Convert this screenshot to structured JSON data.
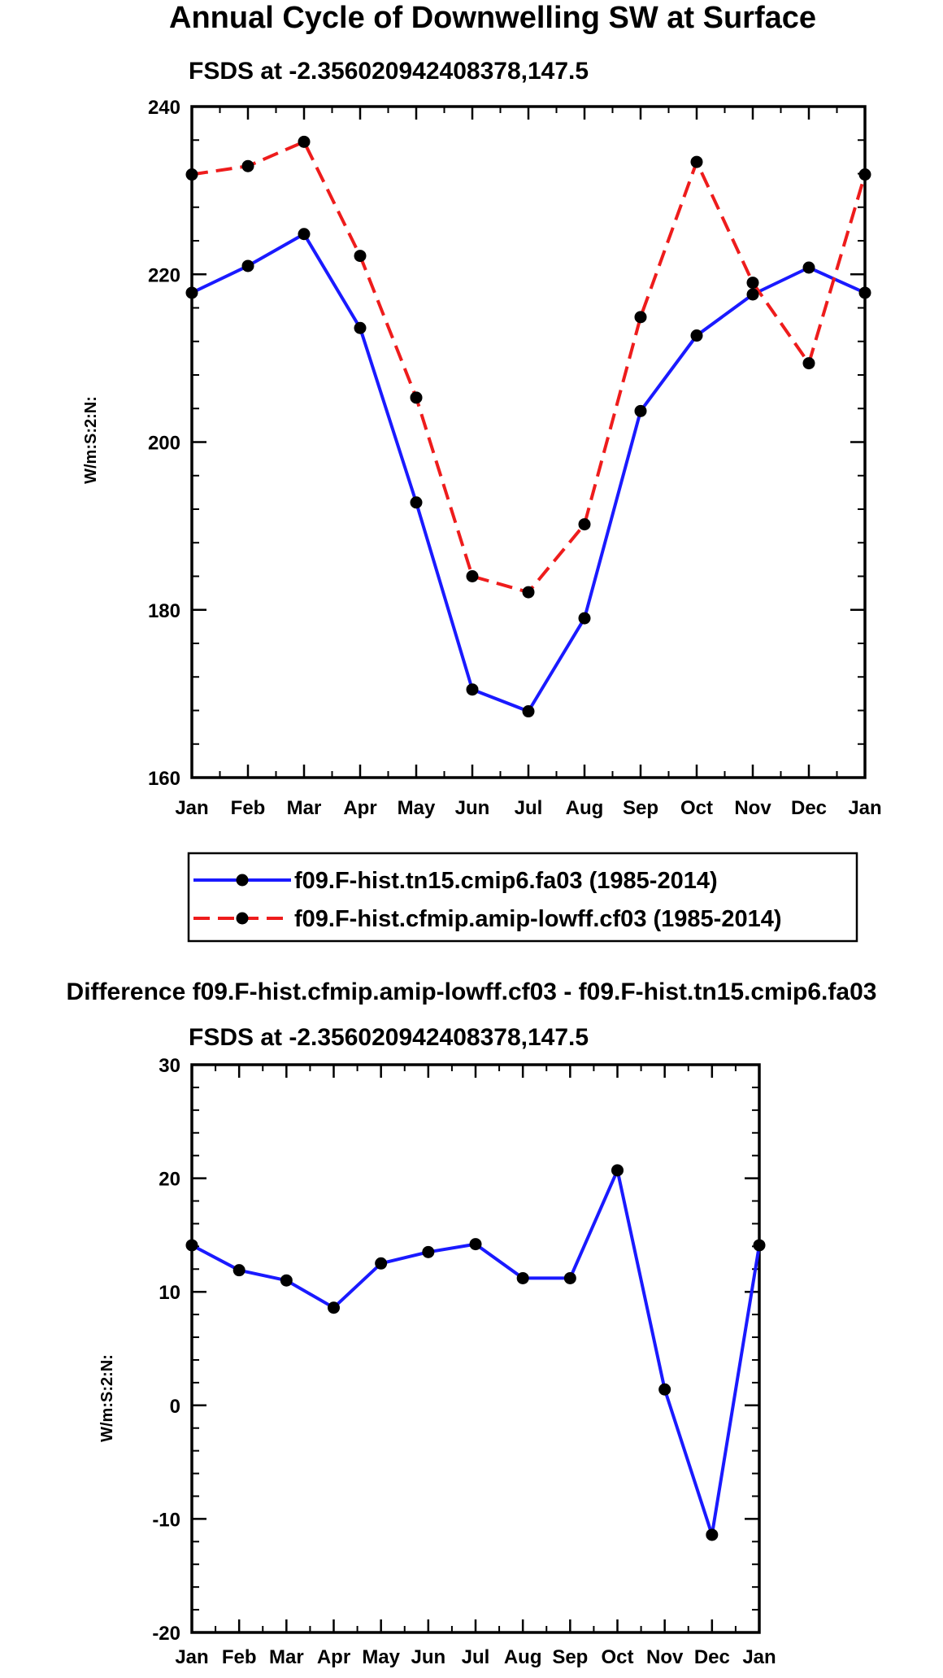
{
  "chart_data": [
    {
      "type": "line",
      "title": "Annual Cycle of Downwelling SW at Surface",
      "subtitle": "FSDS at -2.356020942408378,147.5",
      "ylabel": "W/m:S:2:N:",
      "xlabel": "",
      "categories": [
        "Jan",
        "Feb",
        "Mar",
        "Apr",
        "May",
        "Jun",
        "Jul",
        "Aug",
        "Sep",
        "Oct",
        "Nov",
        "Dec",
        "Jan"
      ],
      "ylim": [
        160,
        240
      ],
      "yticks": [
        160,
        180,
        200,
        220,
        240
      ],
      "series": [
        {
          "name": "f09.F-hist.tn15.cmip6.fa03 (1985-2014)",
          "color": "#1a1aff",
          "dash": "solid",
          "values": [
            217.8,
            221.0,
            224.8,
            213.6,
            192.8,
            170.5,
            167.9,
            179.0,
            203.7,
            212.7,
            217.6,
            220.8,
            217.8
          ]
        },
        {
          "name": "f09.F-hist.cfmip.amip-lowff.cf03 (1985-2014)",
          "color": "#ee1c1c",
          "dash": "dashed",
          "values": [
            231.9,
            232.9,
            235.8,
            222.2,
            205.3,
            184.0,
            182.1,
            190.2,
            214.9,
            233.4,
            219.0,
            209.4,
            231.9
          ]
        }
      ],
      "legend": "below"
    },
    {
      "type": "line",
      "title": "Difference f09.F-hist.cfmip.amip-lowff.cf03 - f09.F-hist.tn15.cmip6.fa03",
      "subtitle": "FSDS at -2.356020942408378,147.5",
      "ylabel": "W/m:S:2:N:",
      "xlabel": "",
      "categories": [
        "Jan",
        "Feb",
        "Mar",
        "Apr",
        "May",
        "Jun",
        "Jul",
        "Aug",
        "Sep",
        "Oct",
        "Nov",
        "Dec",
        "Jan"
      ],
      "ylim": [
        -20,
        30
      ],
      "yticks": [
        -20,
        -10,
        0,
        10,
        20,
        30
      ],
      "series": [
        {
          "name": "difference",
          "color": "#1a1aff",
          "dash": "solid",
          "values": [
            14.1,
            11.9,
            11.0,
            8.6,
            12.5,
            13.5,
            14.2,
            11.2,
            11.2,
            20.7,
            1.4,
            -11.4,
            14.1
          ]
        }
      ]
    }
  ]
}
